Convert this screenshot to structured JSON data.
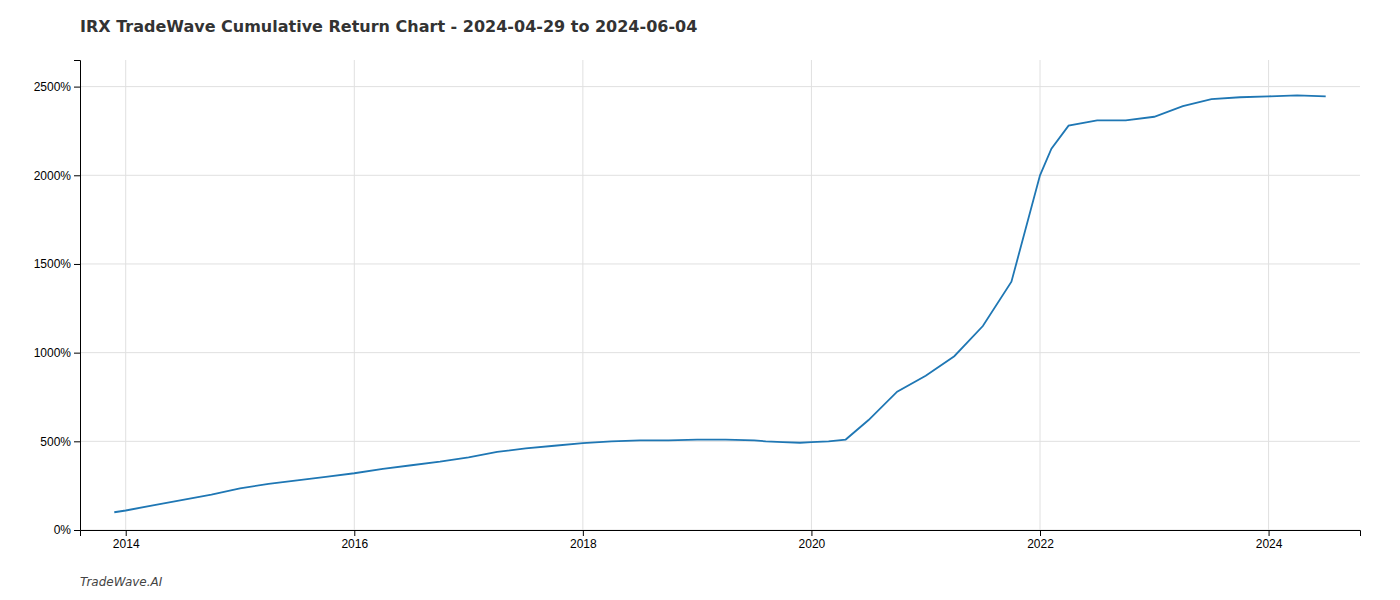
{
  "chart_data": {
    "type": "line",
    "title": "IRX TradeWave Cumulative Return Chart - 2024-04-29 to 2024-06-04",
    "annotations": [
      "TradeWave.AI"
    ],
    "color": "#1f77b4",
    "grid": true,
    "x": [
      2013.9,
      2014.0,
      2014.25,
      2014.5,
      2014.75,
      2015.0,
      2015.25,
      2015.5,
      2015.75,
      2016.0,
      2016.25,
      2016.5,
      2016.75,
      2017.0,
      2017.25,
      2017.5,
      2017.75,
      2018.0,
      2018.25,
      2018.5,
      2018.75,
      2019.0,
      2019.25,
      2019.5,
      2019.6,
      2019.75,
      2019.9,
      2020.0,
      2020.15,
      2020.3,
      2020.5,
      2020.75,
      2021.0,
      2021.25,
      2021.5,
      2021.75,
      2022.0,
      2022.1,
      2022.25,
      2022.5,
      2022.75,
      2023.0,
      2023.25,
      2023.5,
      2023.75,
      2024.0,
      2024.25,
      2024.5
    ],
    "values": [
      100,
      110,
      140,
      170,
      200,
      235,
      260,
      280,
      300,
      320,
      345,
      365,
      385,
      410,
      440,
      460,
      475,
      490,
      500,
      505,
      505,
      510,
      510,
      505,
      500,
      495,
      492,
      495,
      500,
      510,
      620,
      780,
      870,
      980,
      1150,
      1400,
      2000,
      2150,
      2280,
      2310,
      2310,
      2330,
      2390,
      2430,
      2440,
      2445,
      2450,
      2445
    ],
    "xlim": [
      2013.6,
      2024.8
    ],
    "ylim": [
      0,
      2650
    ],
    "xticks": [
      2014,
      2016,
      2018,
      2020,
      2022,
      2024
    ],
    "yticks": [
      {
        "value": 0,
        "label": "0%"
      },
      {
        "value": 500,
        "label": "500%"
      },
      {
        "value": 1000,
        "label": "1000%"
      },
      {
        "value": 1500,
        "label": "1500%"
      },
      {
        "value": 2000,
        "label": "2000%"
      },
      {
        "value": 2500,
        "label": "2500%"
      }
    ]
  }
}
